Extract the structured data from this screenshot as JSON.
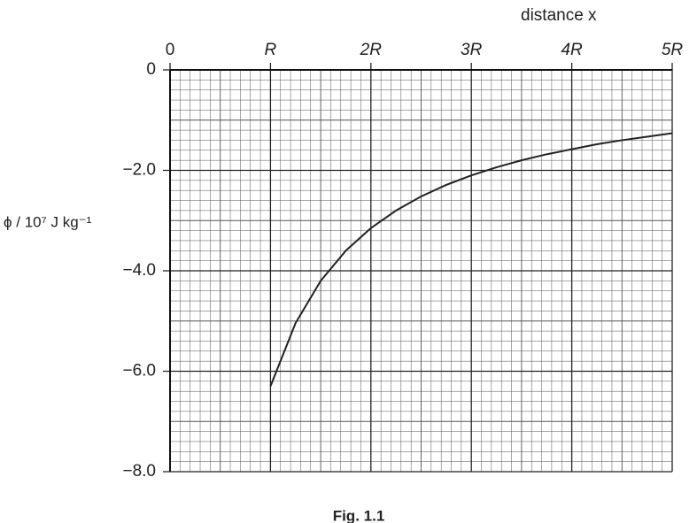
{
  "chart_data": {
    "type": "line",
    "title": "Fig. 1.1",
    "x_label": "distance x",
    "y_label": "ϕ  / 10⁷ J kg⁻¹",
    "x": [
      1,
      1.25,
      1.5,
      1.75,
      2,
      2.25,
      2.5,
      2.75,
      3,
      3.25,
      3.5,
      3.75,
      4,
      4.25,
      4.5,
      4.75,
      5
    ],
    "series": [
      {
        "color": "#222222",
        "values": [
          -6.3,
          -5.04,
          -4.2,
          -3.6,
          -3.15,
          -2.8,
          -2.52,
          -2.29,
          -2.1,
          -1.94,
          -1.8,
          -1.68,
          -1.58,
          -1.48,
          -1.4,
          -1.33,
          -1.26
        ]
      }
    ],
    "xlim": [
      0,
      5
    ],
    "ylim": [
      -8,
      0
    ],
    "xticks": [
      0,
      {
        "value": 1,
        "label": "R"
      },
      {
        "value": 2,
        "label": "2R"
      },
      {
        "value": 3,
        "label": "3R"
      },
      {
        "value": 4,
        "label": "4R"
      },
      {
        "value": 5,
        "label": "5R"
      }
    ],
    "yticks": [
      0,
      {
        "value": -2,
        "label": "−2.0"
      },
      {
        "value": -4,
        "label": "−4.0"
      },
      {
        "value": -6,
        "label": "−6.0"
      },
      {
        "value": -8,
        "label": "−8.0"
      }
    ],
    "grid": true
  }
}
